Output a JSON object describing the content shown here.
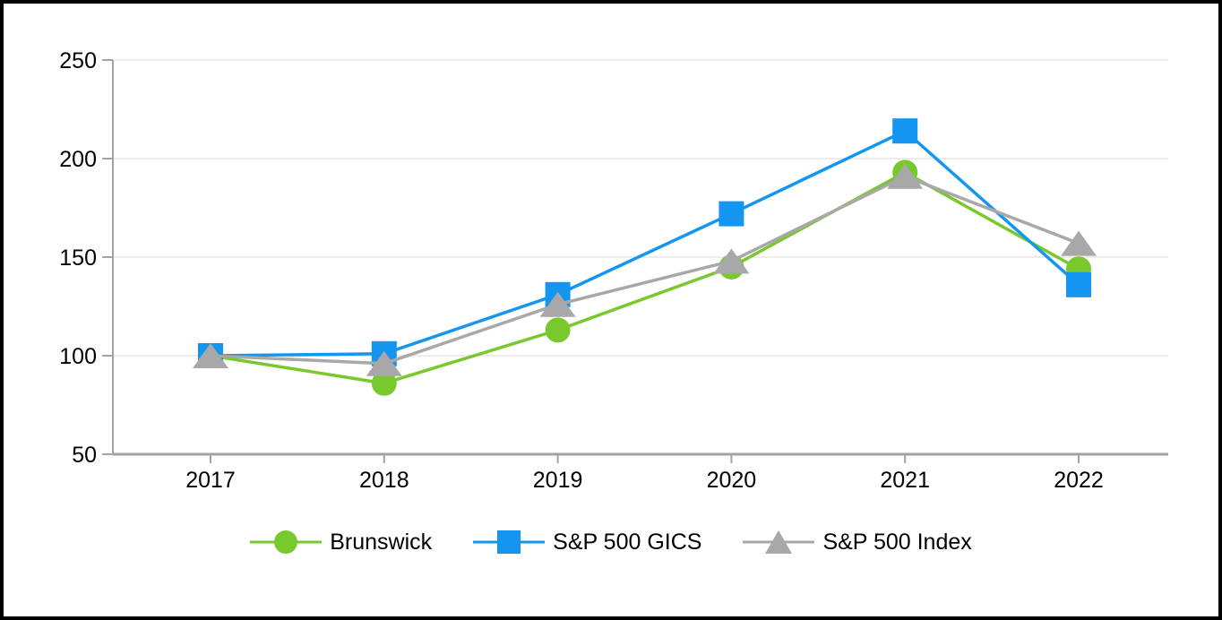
{
  "chart_data": {
    "type": "line",
    "title": "",
    "subtitle": "",
    "xlabel": "",
    "ylabel": "",
    "categories": [
      "2017",
      "2018",
      "2019",
      "2020",
      "2021",
      "2022"
    ],
    "series": [
      {
        "name": "Brunswick",
        "marker": "circle",
        "color": "#79C82D",
        "values": [
          100,
          86,
          113,
          145,
          193,
          144
        ]
      },
      {
        "name": "S&P 500 GICS",
        "marker": "square",
        "color": "#1496F0",
        "values": [
          100,
          101,
          131,
          172,
          214,
          136
        ]
      },
      {
        "name": "S&P 500 Index",
        "marker": "triangle",
        "color": "#A8A8A8",
        "values": [
          100,
          96,
          126,
          148,
          191,
          157
        ]
      }
    ],
    "ylim": [
      50,
      250
    ],
    "yticks": [
      50,
      100,
      150,
      200,
      250
    ],
    "grid": true,
    "legend_position": "bottom",
    "colors": {
      "gridline": "#ececec",
      "axis": "#a3a3a3",
      "text": "#000000",
      "background": "#ffffff",
      "frame": "#000000"
    }
  }
}
